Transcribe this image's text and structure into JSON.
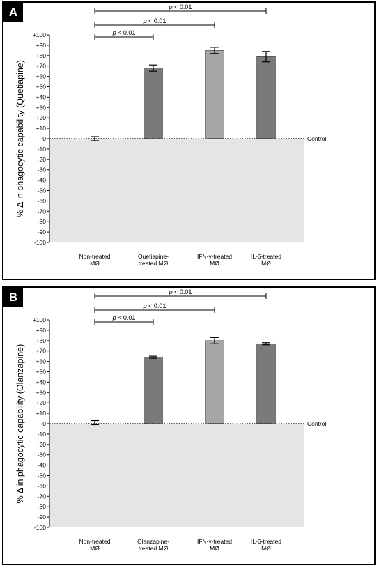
{
  "chart_data": [
    {
      "type": "bar",
      "panel_label": "A",
      "ylabel": "% Δ in phagocytic capability (Quetiapine)",
      "ylim": [
        -100,
        100
      ],
      "yticks": [
        "+100",
        "+90",
        "+80",
        "+70",
        "+60",
        "+50",
        "+40",
        "+30",
        "+20",
        "+10",
        "0",
        "-10",
        "-20",
        "-30",
        "-40",
        "-50",
        "-60",
        "-70",
        "-80",
        "-90",
        "-100"
      ],
      "categories": [
        [
          "Non-treated",
          "MØ"
        ],
        [
          "Quetiapine-",
          "treated MØ"
        ],
        [
          "IFN-γ-treated",
          "MØ"
        ],
        [
          "IL-6-treated",
          "MØ"
        ]
      ],
      "values": [
        0,
        68,
        85,
        79
      ],
      "errors": [
        2,
        3,
        3,
        5
      ],
      "bar_colors": [
        "#7a7a7a",
        "#7a7a7a",
        "#a6a6a6",
        "#7a7a7a"
      ],
      "reference_label": "Control",
      "significance": [
        {
          "from": 0,
          "to": 3,
          "label": "p < 0.01"
        },
        {
          "from": 0,
          "to": 2,
          "label": "p < 0.01"
        },
        {
          "from": 0,
          "to": 1,
          "label": "p < 0.01"
        }
      ]
    },
    {
      "type": "bar",
      "panel_label": "B",
      "ylabel": "% Δ in phagocytic capability (Olanzapine)",
      "ylim": [
        -100,
        100
      ],
      "yticks": [
        "+100",
        "+90",
        "+80",
        "+70",
        "+60",
        "+50",
        "+40",
        "+30",
        "+20",
        "+10",
        "0",
        "-10",
        "-20",
        "-30",
        "-40",
        "-50",
        "-60",
        "-70",
        "-80",
        "-90",
        "-100"
      ],
      "categories": [
        [
          "Non-treated",
          "MØ"
        ],
        [
          "Olanzapine-",
          "treated MØ"
        ],
        [
          "IFN-γ-treated",
          "MØ"
        ],
        [
          "IL-6-treated",
          "MØ"
        ]
      ],
      "values": [
        1,
        64,
        80,
        77
      ],
      "errors": [
        2,
        1,
        3,
        1
      ],
      "bar_colors": [
        "#7a7a7a",
        "#7a7a7a",
        "#a6a6a6",
        "#7a7a7a"
      ],
      "reference_label": "Control",
      "significance": [
        {
          "from": 0,
          "to": 3,
          "label": "p < 0.01"
        },
        {
          "from": 0,
          "to": 2,
          "label": "p < 0.01"
        },
        {
          "from": 0,
          "to": 1,
          "label": "p < 0.01"
        }
      ]
    }
  ]
}
